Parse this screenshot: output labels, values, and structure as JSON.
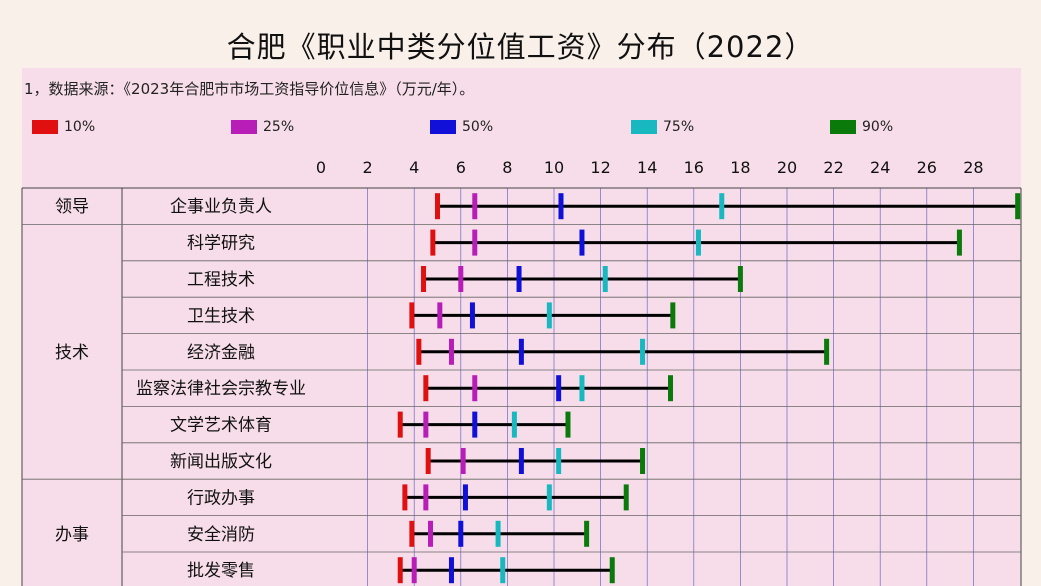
{
  "page": {
    "title": "合肥《职业中类分位值工资》分布（2022）",
    "note": "1，数据来源：《2023年合肥市市场工资指导价位信息》（万元/年）。"
  },
  "colors": {
    "p10": "#e01010",
    "p25": "#b81db8",
    "p50": "#1010d8",
    "p75": "#18b8c0",
    "p90": "#0a7a0a",
    "line": "#000000",
    "grid": "#4040c0",
    "panel": "#f6dde9",
    "bg": "#faf0ea"
  },
  "chart_data": {
    "type": "range-marker",
    "title": "合肥《职业中类分位值工资》分布（2022）",
    "unit": "万元/年",
    "xlim": [
      0,
      30
    ],
    "xticks": [
      0,
      2,
      4,
      6,
      8,
      10,
      12,
      14,
      16,
      18,
      20,
      22,
      24,
      26,
      28
    ],
    "legend": [
      {
        "key": "p10",
        "label": "10%"
      },
      {
        "key": "p25",
        "label": "25%"
      },
      {
        "key": "p50",
        "label": "50%"
      },
      {
        "key": "p75",
        "label": "75%"
      },
      {
        "key": "p90",
        "label": "90%"
      }
    ],
    "groups": [
      {
        "name": "领导",
        "rows": [
          {
            "name": "企事业负责人",
            "p10": 5.0,
            "p25": 6.6,
            "p50": 10.3,
            "p75": 17.2,
            "p90": 29.9
          }
        ]
      },
      {
        "name": "技术",
        "rows": [
          {
            "name": "科学研究",
            "p10": 4.8,
            "p25": 6.6,
            "p50": 11.2,
            "p75": 16.2,
            "p90": 27.4
          },
          {
            "name": "工程技术",
            "p10": 4.4,
            "p25": 6.0,
            "p50": 8.5,
            "p75": 12.2,
            "p90": 18.0
          },
          {
            "name": "卫生技术",
            "p10": 3.9,
            "p25": 5.1,
            "p50": 6.5,
            "p75": 9.8,
            "p90": 15.1
          },
          {
            "name": "经济金融",
            "p10": 4.2,
            "p25": 5.6,
            "p50": 8.6,
            "p75": 13.8,
            "p90": 21.7
          },
          {
            "name": "监察法律社会宗教专业",
            "p10": 4.5,
            "p25": 6.6,
            "p50": 10.2,
            "p75": 11.2,
            "p90": 15.0
          }
        ]
      },
      {
        "name": "",
        "rows": [
          {
            "name": "文学艺术体育",
            "p10": 3.4,
            "p25": 4.5,
            "p50": 6.6,
            "p75": 8.3,
            "p90": 10.6
          },
          {
            "name": "新闻出版文化",
            "p10": 4.6,
            "p25": 6.1,
            "p50": 8.6,
            "p75": 10.2,
            "p90": 13.8
          }
        ]
      },
      {
        "name": "办事",
        "rows": [
          {
            "name": "行政办事",
            "p10": 3.6,
            "p25": 4.5,
            "p50": 6.2,
            "p75": 9.8,
            "p90": 13.1
          },
          {
            "name": "安全消防",
            "p10": 3.9,
            "p25": 4.7,
            "p50": 6.0,
            "p75": 7.6,
            "p90": 11.4
          }
        ]
      },
      {
        "name": "",
        "rows": [
          {
            "name": "批发零售",
            "p10": 3.4,
            "p25": 4.0,
            "p50": 5.6,
            "p75": 7.8,
            "p90": 12.5
          }
        ]
      }
    ]
  }
}
